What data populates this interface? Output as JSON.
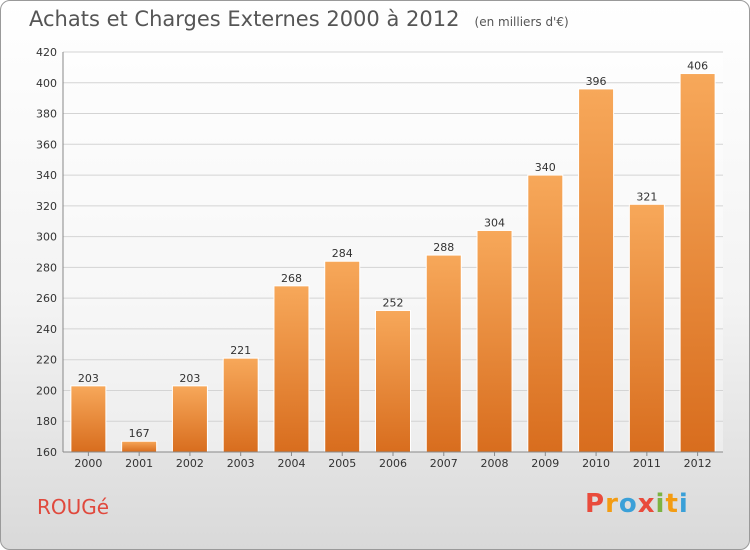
{
  "chart_data": {
    "type": "bar",
    "title": "Achats et Charges Externes 2000 à 2012",
    "subtitle": "(en milliers d'€)",
    "categories": [
      "2000",
      "2001",
      "2002",
      "2003",
      "2004",
      "2005",
      "2006",
      "2007",
      "2008",
      "2009",
      "2010",
      "2011",
      "2012"
    ],
    "values": [
      203,
      167,
      203,
      221,
      268,
      284,
      252,
      288,
      304,
      340,
      396,
      321,
      406
    ],
    "ylim": [
      160,
      420
    ],
    "yticks": [
      160,
      180,
      200,
      220,
      240,
      260,
      280,
      300,
      320,
      340,
      360,
      380,
      400,
      420
    ],
    "grid": true,
    "bar_color": "#f0923a"
  },
  "commune": "ROUGé",
  "brand": {
    "letters": [
      "P",
      "r",
      "o",
      "x",
      "i",
      "t",
      "i"
    ],
    "colors": [
      "#e94b3c",
      "#f39c12",
      "#3aa0d8",
      "#e94b3c",
      "#7cb342",
      "#f39c12",
      "#3aa0d8"
    ]
  }
}
